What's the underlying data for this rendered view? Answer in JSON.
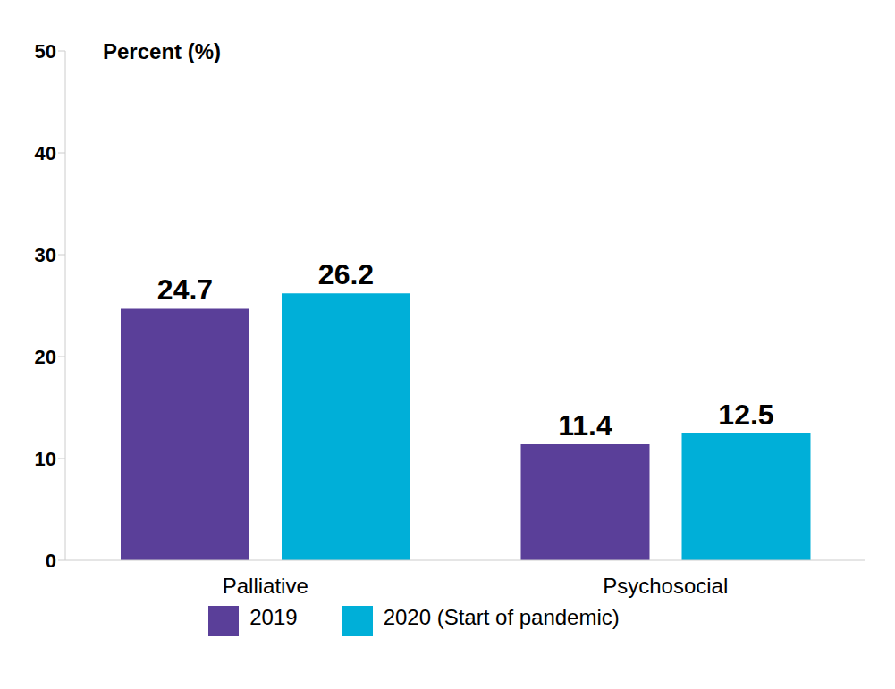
{
  "chart_data": {
    "type": "bar",
    "y_label": "Percent (%)",
    "categories": [
      "Palliative",
      "Psychosocial"
    ],
    "series": [
      {
        "name": "2019",
        "color": "#5a3f99",
        "values": [
          24.7,
          11.4
        ]
      },
      {
        "name": "2020 (Start of pandemic)",
        "color": "#00afd8",
        "values": [
          26.2,
          12.5
        ]
      }
    ],
    "ylim": [
      0,
      50
    ],
    "yticks": [
      0,
      10,
      20,
      30,
      40,
      50
    ],
    "grid": false,
    "data_labels": true,
    "legend": "bottom"
  }
}
